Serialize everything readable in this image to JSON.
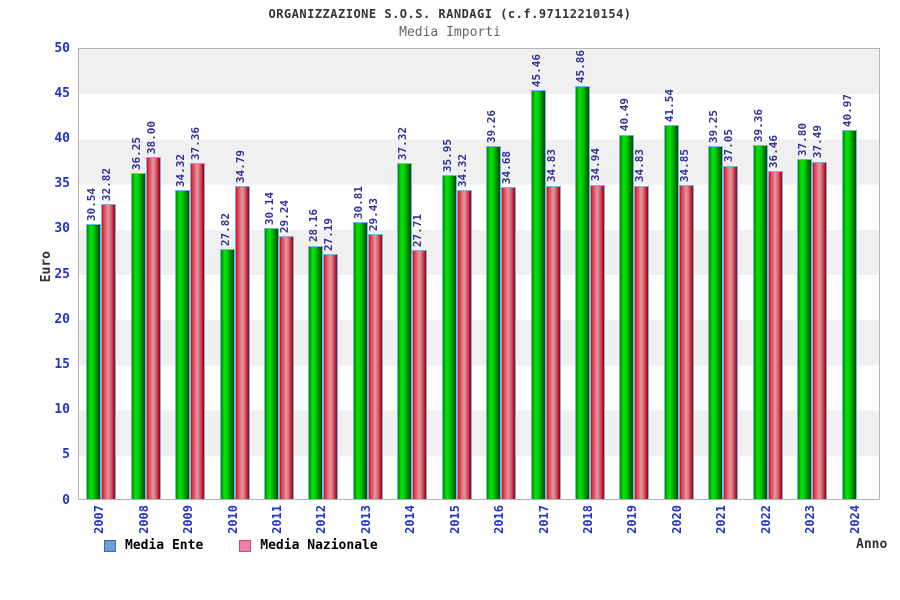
{
  "chart_data": {
    "type": "bar",
    "title": "ORGANIZZAZIONE S.O.S. RANDAGI (c.f.97112210154)",
    "subtitle": "Media Importi",
    "xlabel": "Anno",
    "ylabel": "Euro",
    "ylim": [
      0,
      50
    ],
    "y_ticks": [
      0,
      5,
      10,
      15,
      20,
      25,
      30,
      35,
      40,
      45,
      50
    ],
    "grid": "alternating horizontal bands, gray band at top",
    "legend_position": "bottom-left",
    "value_label_format": "2 decimals, rotated 90deg above each bar",
    "categories": [
      "2007",
      "2008",
      "2009",
      "2010",
      "2011",
      "2012",
      "2013",
      "2014",
      "2015",
      "2016",
      "2017",
      "2018",
      "2019",
      "2020",
      "2021",
      "2022",
      "2023",
      "2024"
    ],
    "series": [
      {
        "name": "Media Ente",
        "bar_style": "green cylinder gradient",
        "legend_swatch_color": "#6a9fd8",
        "values": [
          30.54,
          36.25,
          34.32,
          27.82,
          30.14,
          28.16,
          30.81,
          37.32,
          35.95,
          39.26,
          45.46,
          45.86,
          40.49,
          41.54,
          39.25,
          39.36,
          37.8,
          40.97
        ]
      },
      {
        "name": "Media Nazionale",
        "bar_style": "red cylinder gradient",
        "legend_swatch_color": "#ee7fa8",
        "values": [
          32.82,
          38.0,
          37.36,
          34.79,
          29.24,
          27.19,
          29.43,
          27.71,
          34.32,
          34.68,
          34.83,
          34.94,
          34.83,
          34.85,
          37.05,
          36.46,
          37.49,
          null
        ]
      }
    ],
    "colors": {
      "tick_label": "#2533cc",
      "value_label": "#333399",
      "title": "#333333",
      "subtitle": "#666666",
      "band_gray": "#f0f0f0",
      "band_white": "#ffffff",
      "bar_border": "#7fb0e8"
    }
  }
}
